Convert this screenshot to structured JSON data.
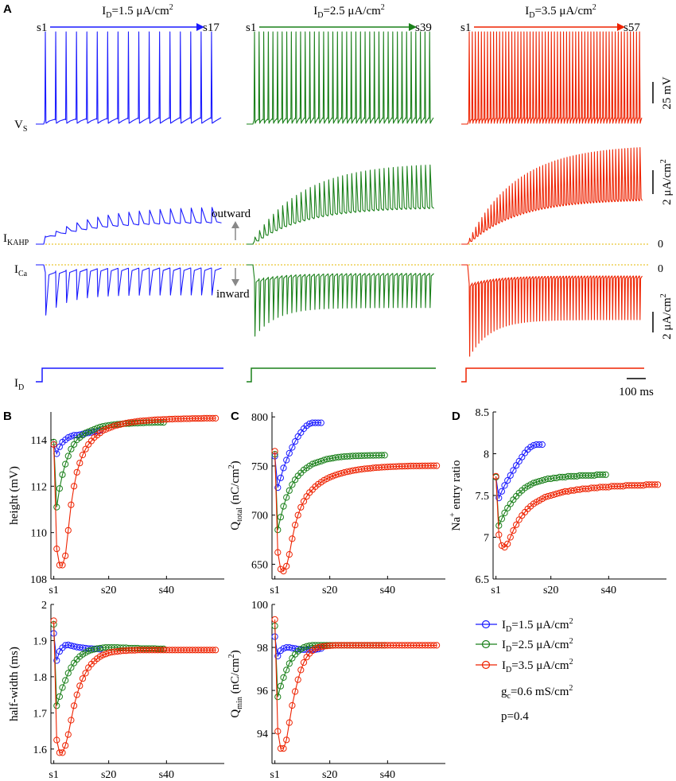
{
  "panel_labels": {
    "a": "A",
    "b": "B",
    "c": "C",
    "d": "D"
  },
  "colors": {
    "blue": "#1a1aff",
    "green": "#1a801a",
    "red": "#ee2200",
    "zero_line": "#e6b800",
    "gray_arrow": "#888888"
  },
  "panel_a": {
    "columns": [
      {
        "header_pre": "I",
        "header_sub": "D",
        "header_post": "=1.5 μA/cm",
        "header_sup": "2",
        "first_spike": "s1",
        "last_spike": "s17",
        "color": "#1a1aff",
        "spikes": 17,
        "kahp_peak_frac": 0.38,
        "ca_peak_frac": 0.55
      },
      {
        "header_pre": "I",
        "header_sub": "D",
        "header_post": "=2.5 μA/cm",
        "header_sup": "2",
        "first_spike": "s1",
        "last_spike": "s39",
        "color": "#1a801a",
        "spikes": 39,
        "kahp_peak_frac": 0.82,
        "ca_peak_frac": 0.78
      },
      {
        "header_pre": "I",
        "header_sub": "D",
        "header_post": "=3.5 μA/cm",
        "header_sup": "2",
        "first_spike": "s1",
        "last_spike": "s57",
        "color": "#ee2200",
        "spikes": 57,
        "kahp_peak_frac": 1.0,
        "ca_peak_frac": 1.0
      }
    ],
    "trace_labels": {
      "vs": {
        "main": "V",
        "sub": "S"
      },
      "ikahp": {
        "main": "I",
        "sub": "KAHP"
      },
      "ica": {
        "main": "I",
        "sub": "Ca"
      },
      "id": {
        "main": "I",
        "sub": "D"
      }
    },
    "outward_label": "outward",
    "inward_label": "inward",
    "zero_label": "0",
    "scalebars": {
      "voltage": "25 mV",
      "current_top": {
        "main": "2 μA/cm",
        "sup": "2"
      },
      "current_bottom": {
        "main": "2 μA/cm",
        "sup": "2"
      },
      "time": "100 ms"
    }
  },
  "chart_data": [
    {
      "id": "B-top",
      "type": "line",
      "panel": "B",
      "ylabel": "height (mV)",
      "ylim": [
        108,
        115.2
      ],
      "yticks": [
        108,
        110,
        112,
        114
      ],
      "xticks": [
        {
          "v": 1,
          "label": "s1"
        },
        {
          "v": 20,
          "label": "s20"
        },
        {
          "v": 40,
          "label": "s40"
        }
      ],
      "xlim": [
        0,
        60
      ],
      "series": [
        {
          "name": "I_D=1.5",
          "color": "#1a1aff",
          "n": 17,
          "y": [
            113.8,
            113.4,
            113.7,
            113.9,
            114.0,
            114.1,
            114.15,
            114.2,
            114.2,
            114.22,
            114.25,
            114.28,
            114.3,
            114.32,
            114.35,
            114.37,
            114.4
          ]
        },
        {
          "name": "I_D=2.5",
          "color": "#1a801a",
          "n": 39,
          "y": [
            113.9,
            111.1,
            111.9,
            112.5,
            112.95,
            113.3,
            113.6,
            113.8,
            114.0,
            114.1,
            114.2,
            114.3,
            114.35,
            114.4,
            114.45,
            114.5,
            114.55,
            114.58,
            114.6,
            114.62,
            114.64,
            114.66,
            114.67,
            114.68,
            114.69,
            114.7,
            114.7,
            114.71,
            114.72,
            114.72,
            114.73,
            114.73,
            114.74,
            114.74,
            114.74,
            114.75,
            114.75,
            114.75,
            114.75
          ]
        },
        {
          "name": "I_D=3.5",
          "color": "#ee2200",
          "n": 57,
          "y": [
            113.8,
            109.3,
            108.6,
            108.6,
            109.0,
            110.1,
            111.2,
            112.0,
            112.6,
            113.0,
            113.35,
            113.6,
            113.8,
            113.95,
            114.1,
            114.2,
            114.3,
            114.4,
            114.45,
            114.5,
            114.55,
            114.6,
            114.63,
            114.66,
            114.69,
            114.72,
            114.74,
            114.76,
            114.78,
            114.8,
            114.81,
            114.82,
            114.83,
            114.84,
            114.85,
            114.86,
            114.87,
            114.87,
            114.88,
            114.88,
            114.89,
            114.89,
            114.9,
            114.9,
            114.9,
            114.91,
            114.91,
            114.91,
            114.92,
            114.92,
            114.92,
            114.92,
            114.93,
            114.93,
            114.93,
            114.93,
            114.93
          ]
        }
      ]
    },
    {
      "id": "B-bottom",
      "type": "line",
      "panel": "B",
      "ylabel": "half-width (ms)",
      "ylim": [
        1.56,
        2.0
      ],
      "yticks": [
        1.6,
        1.7,
        1.8,
        1.9,
        2.0
      ],
      "yticklabels": [
        "1.6",
        "1.7",
        "1.8",
        "1.9",
        "2"
      ],
      "xticks": [
        {
          "v": 1,
          "label": "s1"
        },
        {
          "v": 20,
          "label": "s20"
        },
        {
          "v": 40,
          "label": "s40"
        }
      ],
      "xlim": [
        0,
        60
      ],
      "series": [
        {
          "name": "I_D=1.5",
          "color": "#1a1aff",
          "n": 17,
          "y": [
            1.92,
            1.845,
            1.87,
            1.88,
            1.887,
            1.888,
            1.886,
            1.884,
            1.882,
            1.881,
            1.88,
            1.879,
            1.878,
            1.878,
            1.877,
            1.877,
            1.876
          ]
        },
        {
          "name": "I_D=2.5",
          "color": "#1a801a",
          "n": 39,
          "y": [
            1.945,
            1.72,
            1.745,
            1.77,
            1.79,
            1.81,
            1.825,
            1.838,
            1.848,
            1.856,
            1.862,
            1.867,
            1.871,
            1.874,
            1.876,
            1.878,
            1.879,
            1.88,
            1.881,
            1.881,
            1.881,
            1.881,
            1.881,
            1.88,
            1.88,
            1.88,
            1.879,
            1.879,
            1.879,
            1.879,
            1.878,
            1.878,
            1.878,
            1.878,
            1.878,
            1.878,
            1.877,
            1.877,
            1.877
          ]
        },
        {
          "name": "I_D=3.5",
          "color": "#ee2200",
          "n": 57,
          "y": [
            1.955,
            1.625,
            1.59,
            1.59,
            1.61,
            1.64,
            1.68,
            1.72,
            1.75,
            1.775,
            1.795,
            1.81,
            1.825,
            1.835,
            1.843,
            1.85,
            1.856,
            1.86,
            1.863,
            1.866,
            1.868,
            1.869,
            1.87,
            1.871,
            1.872,
            1.872,
            1.873,
            1.873,
            1.873,
            1.874,
            1.874,
            1.874,
            1.874,
            1.874,
            1.874,
            1.874,
            1.874,
            1.874,
            1.874,
            1.874,
            1.874,
            1.874,
            1.874,
            1.874,
            1.874,
            1.874,
            1.874,
            1.874,
            1.874,
            1.874,
            1.874,
            1.874,
            1.874,
            1.874,
            1.874,
            1.874,
            1.874
          ]
        }
      ]
    },
    {
      "id": "C-top",
      "type": "line",
      "panel": "C",
      "ylabel": {
        "main": "Q",
        "sub": "total",
        "post": " (nC/cm",
        "sup": "2",
        "end": ")"
      },
      "ylim": [
        635,
        805
      ],
      "yticks": [
        650,
        700,
        750,
        800
      ],
      "xticks": [
        {
          "v": 1,
          "label": "s1"
        },
        {
          "v": 20,
          "label": "s20"
        },
        {
          "v": 40,
          "label": "s40"
        }
      ],
      "xlim": [
        0,
        60
      ],
      "series": [
        {
          "name": "I_D=1.5",
          "color": "#1a1aff",
          "n": 17,
          "y": [
            760,
            728,
            738,
            748,
            756,
            763,
            769,
            775,
            780,
            784,
            788,
            791,
            793,
            794,
            794,
            794,
            794
          ]
        },
        {
          "name": "I_D=2.5",
          "color": "#1a801a",
          "n": 39,
          "y": [
            762,
            685,
            698,
            709,
            718,
            725,
            731,
            736,
            740,
            743,
            746,
            748,
            750,
            752,
            753,
            754,
            755,
            756,
            757,
            757.5,
            758,
            758.5,
            759,
            759.3,
            759.6,
            759.8,
            760,
            760.2,
            760.3,
            760.4,
            760.5,
            760.6,
            760.7,
            760.8,
            760.8,
            760.9,
            760.9,
            761,
            761
          ]
        },
        {
          "name": "I_D=3.5",
          "color": "#ee2200",
          "n": 57,
          "y": [
            765,
            662,
            645,
            643,
            648,
            660,
            676,
            690,
            700,
            708,
            714,
            719,
            723,
            726,
            729,
            731.5,
            733.5,
            735.5,
            737,
            738.5,
            739.7,
            740.8,
            741.8,
            742.6,
            743.4,
            744.1,
            744.7,
            745.3,
            745.8,
            746.3,
            746.7,
            747.1,
            747.4,
            747.7,
            748,
            748.3,
            748.5,
            748.7,
            748.9,
            749.1,
            749.2,
            749.4,
            749.5,
            749.6,
            749.7,
            749.8,
            749.9,
            750,
            750,
            750.1,
            750.1,
            750.2,
            750.2,
            750.2,
            750.3,
            750.3,
            750.3
          ]
        }
      ]
    },
    {
      "id": "C-bottom",
      "type": "line",
      "panel": "C",
      "ylabel": {
        "main": "Q",
        "sub": "min",
        "post": " (nC/cm",
        "sup": "2",
        "end": ")"
      },
      "ylim": [
        92.6,
        100
      ],
      "yticks": [
        94,
        96,
        98,
        100
      ],
      "xticks": [
        {
          "v": 1,
          "label": "s1"
        },
        {
          "v": 20,
          "label": "s20"
        },
        {
          "v": 40,
          "label": "s40"
        }
      ],
      "xlim": [
        0,
        60
      ],
      "series": [
        {
          "name": "I_D=1.5",
          "color": "#1a1aff",
          "n": 17,
          "y": [
            98.5,
            97.6,
            97.85,
            97.95,
            98.0,
            98.0,
            97.97,
            97.95,
            97.92,
            97.9,
            97.9,
            97.9,
            97.9,
            97.9,
            97.9,
            97.92,
            97.95
          ]
        },
        {
          "name": "I_D=2.5",
          "color": "#1a801a",
          "n": 39,
          "y": [
            99.0,
            95.7,
            96.2,
            96.6,
            96.95,
            97.25,
            97.5,
            97.68,
            97.82,
            97.92,
            98.0,
            98.05,
            98.08,
            98.1,
            98.1,
            98.1,
            98.1,
            98.1,
            98.1,
            98.1,
            98.1,
            98.1,
            98.1,
            98.1,
            98.1,
            98.1,
            98.1,
            98.1,
            98.1,
            98.1,
            98.1,
            98.1,
            98.1,
            98.1,
            98.1,
            98.1,
            98.1,
            98.1,
            98.1
          ]
        },
        {
          "name": "I_D=3.5",
          "color": "#ee2200",
          "n": 57,
          "y": [
            99.3,
            94.1,
            93.3,
            93.3,
            93.7,
            94.5,
            95.3,
            95.95,
            96.5,
            96.95,
            97.3,
            97.55,
            97.72,
            97.85,
            97.95,
            98.0,
            98.03,
            98.05,
            98.07,
            98.08,
            98.09,
            98.1,
            98.1,
            98.1,
            98.1,
            98.1,
            98.1,
            98.1,
            98.1,
            98.1,
            98.1,
            98.1,
            98.1,
            98.1,
            98.1,
            98.1,
            98.1,
            98.1,
            98.1,
            98.1,
            98.1,
            98.1,
            98.1,
            98.1,
            98.1,
            98.1,
            98.1,
            98.1,
            98.1,
            98.1,
            98.1,
            98.1,
            98.1,
            98.1,
            98.1,
            98.1,
            98.1
          ]
        }
      ]
    },
    {
      "id": "D",
      "type": "line",
      "panel": "D",
      "ylabel": {
        "main": "Na",
        "sup": "+",
        "post": " entry ratio"
      },
      "ylim": [
        6.5,
        8.5
      ],
      "yticks": [
        6.5,
        7,
        7.5,
        8,
        8.5
      ],
      "yticklabels": [
        "6.5",
        "7",
        "7.5",
        "8",
        "8.5"
      ],
      "xticks": [
        {
          "v": 1,
          "label": "s1"
        },
        {
          "v": 20,
          "label": "s20"
        },
        {
          "v": 40,
          "label": "s40"
        }
      ],
      "xlim": [
        0,
        60
      ],
      "series": [
        {
          "name": "I_D=1.5",
          "color": "#1a1aff",
          "n": 17,
          "y": [
            7.72,
            7.47,
            7.55,
            7.62,
            7.68,
            7.74,
            7.8,
            7.86,
            7.91,
            7.96,
            8.01,
            8.05,
            8.08,
            8.1,
            8.11,
            8.11,
            8.11
          ]
        },
        {
          "name": "I_D=2.5",
          "color": "#1a801a",
          "n": 39,
          "y": [
            7.72,
            7.14,
            7.22,
            7.29,
            7.35,
            7.4,
            7.45,
            7.49,
            7.53,
            7.56,
            7.59,
            7.61,
            7.63,
            7.65,
            7.66,
            7.67,
            7.68,
            7.69,
            7.7,
            7.7,
            7.71,
            7.71,
            7.72,
            7.72,
            7.72,
            7.73,
            7.73,
            7.73,
            7.73,
            7.74,
            7.74,
            7.74,
            7.74,
            7.74,
            7.74,
            7.75,
            7.75,
            7.75,
            7.75
          ]
        },
        {
          "name": "I_D=3.5",
          "color": "#ee2200",
          "n": 57,
          "y": [
            7.73,
            7.03,
            6.9,
            6.88,
            6.92,
            7.0,
            7.08,
            7.15,
            7.21,
            7.26,
            7.3,
            7.34,
            7.37,
            7.4,
            7.42,
            7.44,
            7.46,
            7.48,
            7.49,
            7.5,
            7.51,
            7.52,
            7.53,
            7.54,
            7.55,
            7.55,
            7.56,
            7.56,
            7.57,
            7.57,
            7.58,
            7.58,
            7.58,
            7.59,
            7.59,
            7.59,
            7.6,
            7.6,
            7.6,
            7.6,
            7.61,
            7.61,
            7.61,
            7.61,
            7.61,
            7.62,
            7.62,
            7.62,
            7.62,
            7.62,
            7.62,
            7.62,
            7.63,
            7.63,
            7.63,
            7.63,
            7.63
          ]
        }
      ]
    }
  ],
  "legend": {
    "entries": [
      {
        "pre": "I",
        "sub": "D",
        "post": "=1.5 μA/cm",
        "sup": "2",
        "color": "#1a1aff"
      },
      {
        "pre": "I",
        "sub": "D",
        "post": "=2.5 μA/cm",
        "sup": "2",
        "color": "#1a801a"
      },
      {
        "pre": "I",
        "sub": "D",
        "post": "=3.5 μA/cm",
        "sup": "2",
        "color": "#ee2200"
      }
    ],
    "gc": {
      "pre": "g",
      "sub": "c",
      "post": "=0.6 mS/cm",
      "sup": "2"
    },
    "p": "p=0.4"
  }
}
